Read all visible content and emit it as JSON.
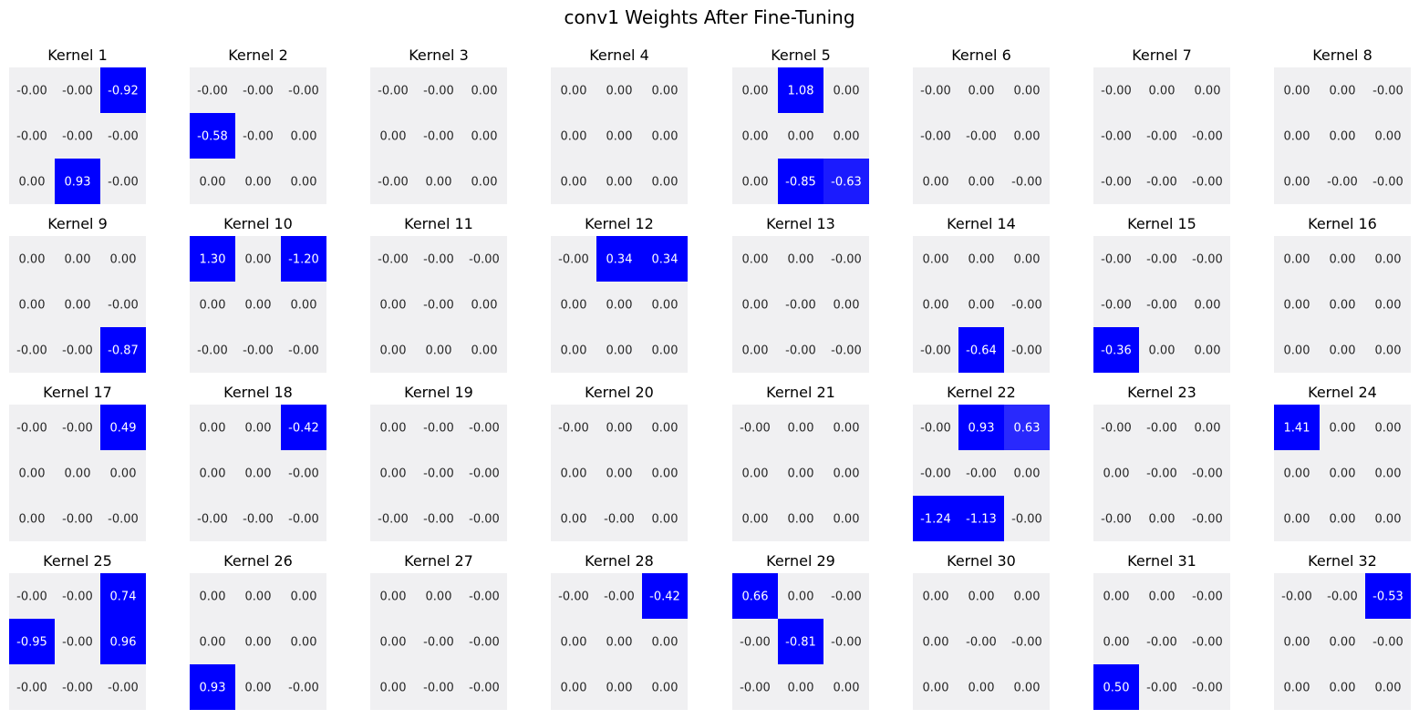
{
  "chart_data": {
    "type": "heatmap",
    "title": "conv1 Weights After Fine-Tuning",
    "grid": {
      "rows": 4,
      "cols": 8
    },
    "colormap": {
      "neutral": "#f0f0f2",
      "strong": "#0000ff",
      "text_on_neutral": "#262626",
      "text_on_strong": "#ffffff"
    },
    "kernels": [
      {
        "title": "Kernel 1",
        "labels": [
          [
            "-0.00",
            "-0.00",
            "-0.92"
          ],
          [
            "-0.00",
            "-0.00",
            "-0.00"
          ],
          [
            "0.00",
            "0.93",
            "-0.00"
          ]
        ],
        "values": [
          [
            0,
            0,
            -0.92
          ],
          [
            0,
            0,
            0
          ],
          [
            0,
            0.93,
            0
          ]
        ]
      },
      {
        "title": "Kernel 2",
        "labels": [
          [
            "-0.00",
            "-0.00",
            "-0.00"
          ],
          [
            "-0.58",
            "-0.00",
            "0.00"
          ],
          [
            "0.00",
            "0.00",
            "0.00"
          ]
        ],
        "values": [
          [
            0,
            0,
            0
          ],
          [
            -0.58,
            0,
            0
          ],
          [
            0,
            0,
            0
          ]
        ]
      },
      {
        "title": "Kernel 3",
        "labels": [
          [
            "-0.00",
            "-0.00",
            "0.00"
          ],
          [
            "0.00",
            "-0.00",
            "0.00"
          ],
          [
            "-0.00",
            "0.00",
            "0.00"
          ]
        ],
        "values": [
          [
            0,
            0,
            0
          ],
          [
            0,
            0,
            0
          ],
          [
            0,
            0,
            0
          ]
        ]
      },
      {
        "title": "Kernel 4",
        "labels": [
          [
            "0.00",
            "0.00",
            "0.00"
          ],
          [
            "0.00",
            "0.00",
            "0.00"
          ],
          [
            "0.00",
            "0.00",
            "0.00"
          ]
        ],
        "values": [
          [
            0,
            0,
            0
          ],
          [
            0,
            0,
            0
          ],
          [
            0,
            0,
            0
          ]
        ]
      },
      {
        "title": "Kernel 5",
        "labels": [
          [
            "0.00",
            "1.08",
            "0.00"
          ],
          [
            "0.00",
            "0.00",
            "0.00"
          ],
          [
            "0.00",
            "-0.85",
            "-0.63"
          ]
        ],
        "values": [
          [
            0,
            1.08,
            0
          ],
          [
            0,
            0,
            0
          ],
          [
            0,
            -0.85,
            -0.63
          ]
        ]
      },
      {
        "title": "Kernel 6",
        "labels": [
          [
            "-0.00",
            "0.00",
            "0.00"
          ],
          [
            "-0.00",
            "-0.00",
            "0.00"
          ],
          [
            "0.00",
            "0.00",
            "-0.00"
          ]
        ],
        "values": [
          [
            0,
            0,
            0
          ],
          [
            0,
            0,
            0
          ],
          [
            0,
            0,
            0
          ]
        ]
      },
      {
        "title": "Kernel 7",
        "labels": [
          [
            "-0.00",
            "0.00",
            "0.00"
          ],
          [
            "-0.00",
            "-0.00",
            "-0.00"
          ],
          [
            "-0.00",
            "-0.00",
            "-0.00"
          ]
        ],
        "values": [
          [
            0,
            0,
            0
          ],
          [
            0,
            0,
            0
          ],
          [
            0,
            0,
            0
          ]
        ]
      },
      {
        "title": "Kernel 8",
        "labels": [
          [
            "0.00",
            "0.00",
            "-0.00"
          ],
          [
            "0.00",
            "0.00",
            "0.00"
          ],
          [
            "0.00",
            "-0.00",
            "-0.00"
          ]
        ],
        "values": [
          [
            0,
            0,
            0
          ],
          [
            0,
            0,
            0
          ],
          [
            0,
            0,
            0
          ]
        ]
      },
      {
        "title": "Kernel 9",
        "labels": [
          [
            "0.00",
            "0.00",
            "0.00"
          ],
          [
            "0.00",
            "0.00",
            "-0.00"
          ],
          [
            "-0.00",
            "-0.00",
            "-0.87"
          ]
        ],
        "values": [
          [
            0,
            0,
            0
          ],
          [
            0,
            0,
            0
          ],
          [
            0,
            0,
            -0.87
          ]
        ]
      },
      {
        "title": "Kernel 10",
        "labels": [
          [
            "1.30",
            "0.00",
            "-1.20"
          ],
          [
            "0.00",
            "0.00",
            "0.00"
          ],
          [
            "-0.00",
            "-0.00",
            "-0.00"
          ]
        ],
        "values": [
          [
            1.3,
            0,
            -1.2
          ],
          [
            0,
            0,
            0
          ],
          [
            0,
            0,
            0
          ]
        ]
      },
      {
        "title": "Kernel 11",
        "labels": [
          [
            "-0.00",
            "-0.00",
            "-0.00"
          ],
          [
            "0.00",
            "-0.00",
            "0.00"
          ],
          [
            "0.00",
            "0.00",
            "0.00"
          ]
        ],
        "values": [
          [
            0,
            0,
            0
          ],
          [
            0,
            0,
            0
          ],
          [
            0,
            0,
            0
          ]
        ]
      },
      {
        "title": "Kernel 12",
        "labels": [
          [
            "-0.00",
            "0.34",
            "0.34"
          ],
          [
            "0.00",
            "0.00",
            "0.00"
          ],
          [
            "0.00",
            "0.00",
            "0.00"
          ]
        ],
        "values": [
          [
            0,
            0.34,
            0.34
          ],
          [
            0,
            0,
            0
          ],
          [
            0,
            0,
            0
          ]
        ]
      },
      {
        "title": "Kernel 13",
        "labels": [
          [
            "0.00",
            "0.00",
            "-0.00"
          ],
          [
            "0.00",
            "-0.00",
            "0.00"
          ],
          [
            "0.00",
            "-0.00",
            "-0.00"
          ]
        ],
        "values": [
          [
            0,
            0,
            0
          ],
          [
            0,
            0,
            0
          ],
          [
            0,
            0,
            0
          ]
        ]
      },
      {
        "title": "Kernel 14",
        "labels": [
          [
            "0.00",
            "0.00",
            "0.00"
          ],
          [
            "0.00",
            "0.00",
            "-0.00"
          ],
          [
            "-0.00",
            "-0.64",
            "-0.00"
          ]
        ],
        "values": [
          [
            0,
            0,
            0
          ],
          [
            0,
            0,
            0
          ],
          [
            0,
            -0.64,
            0
          ]
        ]
      },
      {
        "title": "Kernel 15",
        "labels": [
          [
            "-0.00",
            "-0.00",
            "-0.00"
          ],
          [
            "-0.00",
            "-0.00",
            "0.00"
          ],
          [
            "-0.36",
            "0.00",
            "0.00"
          ]
        ],
        "values": [
          [
            0,
            0,
            0
          ],
          [
            0,
            0,
            0
          ],
          [
            -0.36,
            0,
            0
          ]
        ]
      },
      {
        "title": "Kernel 16",
        "labels": [
          [
            "0.00",
            "0.00",
            "0.00"
          ],
          [
            "0.00",
            "0.00",
            "0.00"
          ],
          [
            "0.00",
            "0.00",
            "0.00"
          ]
        ],
        "values": [
          [
            0,
            0,
            0
          ],
          [
            0,
            0,
            0
          ],
          [
            0,
            0,
            0
          ]
        ]
      },
      {
        "title": "Kernel 17",
        "labels": [
          [
            "-0.00",
            "-0.00",
            "0.49"
          ],
          [
            "0.00",
            "0.00",
            "0.00"
          ],
          [
            "0.00",
            "-0.00",
            "-0.00"
          ]
        ],
        "values": [
          [
            0,
            0,
            0.49
          ],
          [
            0,
            0,
            0
          ],
          [
            0,
            0,
            0
          ]
        ]
      },
      {
        "title": "Kernel 18",
        "labels": [
          [
            "0.00",
            "0.00",
            "-0.42"
          ],
          [
            "0.00",
            "0.00",
            "-0.00"
          ],
          [
            "-0.00",
            "-0.00",
            "-0.00"
          ]
        ],
        "values": [
          [
            0,
            0,
            -0.42
          ],
          [
            0,
            0,
            0
          ],
          [
            0,
            0,
            0
          ]
        ]
      },
      {
        "title": "Kernel 19",
        "labels": [
          [
            "0.00",
            "-0.00",
            "-0.00"
          ],
          [
            "0.00",
            "-0.00",
            "-0.00"
          ],
          [
            "-0.00",
            "-0.00",
            "-0.00"
          ]
        ],
        "values": [
          [
            0,
            0,
            0
          ],
          [
            0,
            0,
            0
          ],
          [
            0,
            0,
            0
          ]
        ]
      },
      {
        "title": "Kernel 20",
        "labels": [
          [
            "-0.00",
            "0.00",
            "0.00"
          ],
          [
            "0.00",
            "0.00",
            "0.00"
          ],
          [
            "0.00",
            "-0.00",
            "0.00"
          ]
        ],
        "values": [
          [
            0,
            0,
            0
          ],
          [
            0,
            0,
            0
          ],
          [
            0,
            0,
            0
          ]
        ]
      },
      {
        "title": "Kernel 21",
        "labels": [
          [
            "-0.00",
            "0.00",
            "0.00"
          ],
          [
            "0.00",
            "0.00",
            "0.00"
          ],
          [
            "0.00",
            "0.00",
            "0.00"
          ]
        ],
        "values": [
          [
            0,
            0,
            0
          ],
          [
            0,
            0,
            0
          ],
          [
            0,
            0,
            0
          ]
        ]
      },
      {
        "title": "Kernel 22",
        "labels": [
          [
            "-0.00",
            "0.93",
            "0.63"
          ],
          [
            "-0.00",
            "-0.00",
            "0.00"
          ],
          [
            "-1.24",
            "-1.13",
            "-0.00"
          ]
        ],
        "values": [
          [
            0,
            0.93,
            0.63
          ],
          [
            0,
            0,
            0
          ],
          [
            -1.24,
            -1.13,
            0
          ]
        ]
      },
      {
        "title": "Kernel 23",
        "labels": [
          [
            "-0.00",
            "-0.00",
            "0.00"
          ],
          [
            "0.00",
            "-0.00",
            "-0.00"
          ],
          [
            "-0.00",
            "0.00",
            "-0.00"
          ]
        ],
        "values": [
          [
            0,
            0,
            0
          ],
          [
            0,
            0,
            0
          ],
          [
            0,
            0,
            0
          ]
        ]
      },
      {
        "title": "Kernel 24",
        "labels": [
          [
            "1.41",
            "0.00",
            "0.00"
          ],
          [
            "0.00",
            "0.00",
            "0.00"
          ],
          [
            "0.00",
            "0.00",
            "0.00"
          ]
        ],
        "values": [
          [
            1.41,
            0,
            0
          ],
          [
            0,
            0,
            0
          ],
          [
            0,
            0,
            0
          ]
        ]
      },
      {
        "title": "Kernel 25",
        "labels": [
          [
            "-0.00",
            "-0.00",
            "0.74"
          ],
          [
            "-0.95",
            "-0.00",
            "0.96"
          ],
          [
            "-0.00",
            "-0.00",
            "-0.00"
          ]
        ],
        "values": [
          [
            0,
            0,
            0.74
          ],
          [
            -0.95,
            0,
            0.96
          ],
          [
            0,
            0,
            0
          ]
        ]
      },
      {
        "title": "Kernel 26",
        "labels": [
          [
            "0.00",
            "0.00",
            "0.00"
          ],
          [
            "0.00",
            "0.00",
            "0.00"
          ],
          [
            "0.93",
            "0.00",
            "-0.00"
          ]
        ],
        "values": [
          [
            0,
            0,
            0
          ],
          [
            0,
            0,
            0
          ],
          [
            0.93,
            0,
            0
          ]
        ]
      },
      {
        "title": "Kernel 27",
        "labels": [
          [
            "0.00",
            "0.00",
            "-0.00"
          ],
          [
            "0.00",
            "-0.00",
            "-0.00"
          ],
          [
            "0.00",
            "-0.00",
            "-0.00"
          ]
        ],
        "values": [
          [
            0,
            0,
            0
          ],
          [
            0,
            0,
            0
          ],
          [
            0,
            0,
            0
          ]
        ]
      },
      {
        "title": "Kernel 28",
        "labels": [
          [
            "-0.00",
            "-0.00",
            "-0.42"
          ],
          [
            "0.00",
            "0.00",
            "0.00"
          ],
          [
            "0.00",
            "0.00",
            "0.00"
          ]
        ],
        "values": [
          [
            0,
            0,
            -0.42
          ],
          [
            0,
            0,
            0
          ],
          [
            0,
            0,
            0
          ]
        ]
      },
      {
        "title": "Kernel 29",
        "labels": [
          [
            "0.66",
            "0.00",
            "-0.00"
          ],
          [
            "-0.00",
            "-0.81",
            "-0.00"
          ],
          [
            "-0.00",
            "0.00",
            "0.00"
          ]
        ],
        "values": [
          [
            0.66,
            0,
            0
          ],
          [
            0,
            -0.81,
            0
          ],
          [
            0,
            0,
            0
          ]
        ]
      },
      {
        "title": "Kernel 30",
        "labels": [
          [
            "0.00",
            "0.00",
            "0.00"
          ],
          [
            "0.00",
            "-0.00",
            "-0.00"
          ],
          [
            "0.00",
            "0.00",
            "0.00"
          ]
        ],
        "values": [
          [
            0,
            0,
            0
          ],
          [
            0,
            0,
            0
          ],
          [
            0,
            0,
            0
          ]
        ]
      },
      {
        "title": "Kernel 31",
        "labels": [
          [
            "0.00",
            "0.00",
            "-0.00"
          ],
          [
            "0.00",
            "-0.00",
            "-0.00"
          ],
          [
            "0.50",
            "-0.00",
            "-0.00"
          ]
        ],
        "values": [
          [
            0,
            0,
            0
          ],
          [
            0,
            0,
            0
          ],
          [
            0.5,
            0,
            0
          ]
        ]
      },
      {
        "title": "Kernel 32",
        "labels": [
          [
            "-0.00",
            "-0.00",
            "-0.53"
          ],
          [
            "0.00",
            "0.00",
            "-0.00"
          ],
          [
            "0.00",
            "0.00",
            "0.00"
          ]
        ],
        "values": [
          [
            0,
            0,
            -0.53
          ],
          [
            0,
            0,
            0
          ],
          [
            0,
            0,
            0
          ]
        ]
      }
    ]
  }
}
